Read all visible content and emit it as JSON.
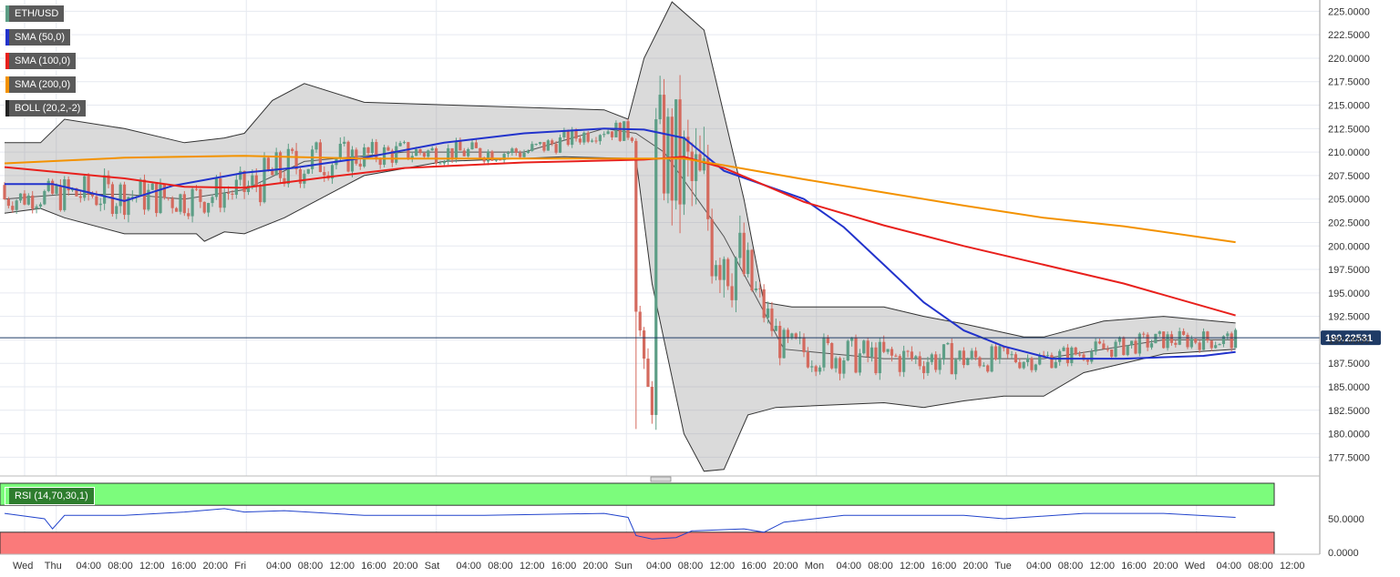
{
  "colors": {
    "sma50": "#2233cc",
    "sma100": "#e8201c",
    "sma200": "#f39200",
    "boll": "#333333",
    "up": "#5d9e86",
    "down": "#d46a5e",
    "rsi_overbought_zone": "#7cfc7c",
    "rsi_oversold_zone": "#fa7a7a",
    "rsi_line": "#2244cc",
    "last_price_bg": "#1f3b66"
  },
  "legend": {
    "symbol": "ETH/USD",
    "sma50": "SMA (50,0)",
    "sma100": "SMA (100,0)",
    "sma200": "SMA (200,0)",
    "boll": "BOLL (20,2,-2)",
    "rsi": "RSI (14,70,30,1)"
  },
  "last_price": "190.22531",
  "chart_data": [
    {
      "type": "candlestick",
      "symbol": "ETH/USD",
      "x_ticks": [
        "Wed",
        "Thu",
        "04:00",
        "08:00",
        "12:00",
        "16:00",
        "20:00",
        "Fri",
        "04:00",
        "08:00",
        "12:00",
        "16:00",
        "20:00",
        "Sat",
        "04:00",
        "08:00",
        "12:00",
        "16:00",
        "20:00",
        "Sun",
        "04:00",
        "08:00",
        "12:00",
        "16:00",
        "20:00",
        "Mon",
        "04:00",
        "08:00",
        "12:00",
        "16:00",
        "20:00",
        "Tue",
        "04:00",
        "08:00",
        "12:00",
        "16:00",
        "20:00",
        "Wed",
        "04:00",
        "08:00",
        "12:00"
      ],
      "y_ticks": [
        "225.0000",
        "222.5000",
        "220.0000",
        "217.5000",
        "215.0000",
        "212.5000",
        "210.0000",
        "207.5000",
        "205.0000",
        "202.5000",
        "200.0000",
        "197.5000",
        "195.0000",
        "192.5000",
        "190.0000",
        "187.5000",
        "185.0000",
        "182.5000",
        "180.0000",
        "177.5000"
      ],
      "ylim": [
        175.5,
        226.2
      ],
      "candle_interval": "1h",
      "last_price": 190.22531,
      "series": [
        {
          "name": "SMA (50,0)",
          "values": [
            [
              0,
              206.6
            ],
            [
              12,
              206.6
            ],
            [
              20,
              205.8
            ],
            [
              30,
              204.8
            ],
            [
              42,
              206.4
            ],
            [
              60,
              207.8
            ],
            [
              72,
              208.3
            ],
            [
              90,
              209.4
            ],
            [
              110,
              211.0
            ],
            [
              130,
              212.0
            ],
            [
              150,
              212.5
            ],
            [
              160,
              212.4
            ],
            [
              170,
              211.5
            ],
            [
              180,
              208.0
            ],
            [
              200,
              205.0
            ],
            [
              210,
              202.0
            ],
            [
              220,
              198.0
            ],
            [
              230,
              194.0
            ],
            [
              240,
              191.0
            ],
            [
              250,
              189.3
            ],
            [
              262,
              188.0
            ],
            [
              280,
              188.0
            ],
            [
              300,
              188.3
            ],
            [
              308,
              188.7
            ]
          ]
        },
        {
          "name": "SMA (100,0)",
          "values": [
            [
              0,
              208.4
            ],
            [
              30,
              207.2
            ],
            [
              45,
              206.3
            ],
            [
              60,
              206.2
            ],
            [
              80,
              207.3
            ],
            [
              100,
              208.3
            ],
            [
              130,
              208.9
            ],
            [
              160,
              209.2
            ],
            [
              170,
              209.5
            ],
            [
              180,
              208.3
            ],
            [
              190,
              206.5
            ],
            [
              200,
              204.7
            ],
            [
              220,
              202.2
            ],
            [
              240,
              200.0
            ],
            [
              260,
              198.0
            ],
            [
              280,
              196.0
            ],
            [
              308,
              192.6
            ]
          ]
        },
        {
          "name": "SMA (200,0)",
          "values": [
            [
              0,
              208.8
            ],
            [
              30,
              209.4
            ],
            [
              60,
              209.6
            ],
            [
              90,
              209.3
            ],
            [
              120,
              209.3
            ],
            [
              150,
              209.3
            ],
            [
              170,
              209.3
            ],
            [
              180,
              208.6
            ],
            [
              200,
              207.1
            ],
            [
              220,
              205.7
            ],
            [
              240,
              204.3
            ],
            [
              260,
              203.0
            ],
            [
              280,
              202.1
            ],
            [
              308,
              200.4
            ]
          ]
        }
      ],
      "bollinger": {
        "name": "BOLL (20,2,-2)",
        "upper": [
          [
            0,
            211.0
          ],
          [
            9,
            211.0
          ],
          [
            15,
            213.5
          ],
          [
            30,
            212.5
          ],
          [
            45,
            211.0
          ],
          [
            55,
            211.5
          ],
          [
            60,
            212.0
          ],
          [
            67,
            215.5
          ],
          [
            75,
            217.3
          ],
          [
            90,
            215.3
          ],
          [
            150,
            214.5
          ],
          [
            156,
            213.5
          ],
          [
            160,
            220.0
          ],
          [
            167,
            226.0
          ],
          [
            175,
            223.0
          ],
          [
            185,
            205.0
          ],
          [
            190,
            194.0
          ],
          [
            197,
            193.5
          ],
          [
            220,
            193.5
          ],
          [
            230,
            192.5
          ],
          [
            240,
            191.7
          ],
          [
            255,
            190.3
          ],
          [
            260,
            190.3
          ],
          [
            275,
            192.0
          ],
          [
            290,
            192.5
          ],
          [
            308,
            191.8
          ]
        ],
        "middle": [
          [
            0,
            205.0
          ],
          [
            15,
            205.5
          ],
          [
            30,
            205.5
          ],
          [
            45,
            205.0
          ],
          [
            60,
            206.0
          ],
          [
            75,
            209.0
          ],
          [
            100,
            210.0
          ],
          [
            130,
            210.0
          ],
          [
            150,
            212.5
          ],
          [
            158,
            212.0
          ],
          [
            165,
            210.0
          ],
          [
            180,
            201.0
          ],
          [
            190,
            193.0
          ],
          [
            195,
            189.0
          ],
          [
            220,
            188.0
          ],
          [
            240,
            188.0
          ],
          [
            260,
            188.0
          ],
          [
            290,
            190.0
          ],
          [
            308,
            190.0
          ]
        ],
        "lower": [
          [
            0,
            203.5
          ],
          [
            9,
            204.0
          ],
          [
            15,
            203.0
          ],
          [
            30,
            201.3
          ],
          [
            48,
            201.3
          ],
          [
            50,
            200.5
          ],
          [
            55,
            201.5
          ],
          [
            60,
            201.3
          ],
          [
            70,
            203.0
          ],
          [
            90,
            207.5
          ],
          [
            110,
            209.0
          ],
          [
            140,
            209.5
          ],
          [
            158,
            209.3
          ],
          [
            162,
            196.0
          ],
          [
            170,
            180.0
          ],
          [
            175,
            176.0
          ],
          [
            180,
            176.2
          ],
          [
            186,
            182.0
          ],
          [
            193,
            182.8
          ],
          [
            220,
            183.3
          ],
          [
            230,
            182.8
          ],
          [
            240,
            183.5
          ],
          [
            250,
            184.0
          ],
          [
            260,
            184.0
          ],
          [
            270,
            186.5
          ],
          [
            290,
            188.5
          ],
          [
            308,
            189.0
          ]
        ]
      }
    },
    {
      "type": "line",
      "name": "RSI (14,70,30,1)",
      "y_ticks": [
        "50.0000",
        "0.0000"
      ],
      "ylim": [
        0,
        100
      ],
      "overbought": 70,
      "oversold": 30,
      "values": [
        [
          0,
          58
        ],
        [
          10,
          50
        ],
        [
          12,
          35
        ],
        [
          15,
          55
        ],
        [
          30,
          55
        ],
        [
          45,
          60
        ],
        [
          55,
          65
        ],
        [
          60,
          60
        ],
        [
          70,
          62
        ],
        [
          90,
          55
        ],
        [
          120,
          55
        ],
        [
          150,
          58
        ],
        [
          156,
          52
        ],
        [
          158,
          25
        ],
        [
          162,
          20
        ],
        [
          168,
          22
        ],
        [
          172,
          32
        ],
        [
          185,
          35
        ],
        [
          190,
          30
        ],
        [
          195,
          45
        ],
        [
          210,
          55
        ],
        [
          240,
          55
        ],
        [
          250,
          50
        ],
        [
          270,
          58
        ],
        [
          290,
          58
        ],
        [
          308,
          52
        ]
      ]
    }
  ]
}
